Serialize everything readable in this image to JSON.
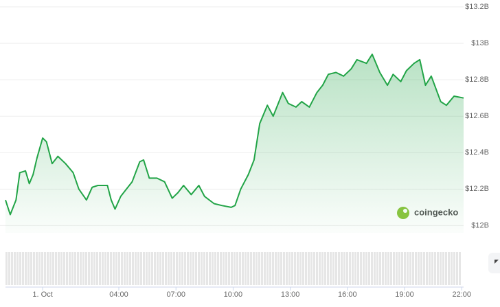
{
  "chart_data": {
    "type": "line",
    "watermark": "coingecko",
    "color": "#22a447",
    "grid": true,
    "xlim": [
      -1.95,
      22.1
    ],
    "xticks": [
      {
        "value": 0,
        "label": "1. Oct"
      },
      {
        "value": 4,
        "label": "04:00"
      },
      {
        "value": 7,
        "label": "07:00"
      },
      {
        "value": 10,
        "label": "10:00"
      },
      {
        "value": 13,
        "label": "13:00"
      },
      {
        "value": 16,
        "label": "16:00"
      },
      {
        "value": 19,
        "label": "19:00"
      },
      {
        "value": 22,
        "label": "22:00"
      }
    ],
    "ylim": [
      11.96,
      13.2
    ],
    "yticks": [
      {
        "value": 12.0,
        "label": "$12B"
      },
      {
        "value": 12.2,
        "label": "$12.2B"
      },
      {
        "value": 12.4,
        "label": "$12.4B"
      },
      {
        "value": 12.6,
        "label": "$12.6B"
      },
      {
        "value": 12.8,
        "label": "$12.8B"
      },
      {
        "value": 13.0,
        "label": "$13B"
      },
      {
        "value": 13.2,
        "label": "$13.2B"
      }
    ],
    "x": [
      -1.95,
      -1.7,
      -1.4,
      -1.2,
      -0.9,
      -0.7,
      -0.5,
      -0.3,
      0,
      0.2,
      0.5,
      0.8,
      1.2,
      1.6,
      1.9,
      2.3,
      2.6,
      2.9,
      3.4,
      3.6,
      3.8,
      4.1,
      4.4,
      4.7,
      5.1,
      5.3,
      5.6,
      6.0,
      6.4,
      6.8,
      7.1,
      7.4,
      7.8,
      8.2,
      8.5,
      9.0,
      9.4,
      9.9,
      10.1,
      10.4,
      10.8,
      11.1,
      11.4,
      11.8,
      12.1,
      12.6,
      12.9,
      13.3,
      13.6,
      14.0,
      14.4,
      14.7,
      15.0,
      15.4,
      15.8,
      16.2,
      16.5,
      17.0,
      17.3,
      17.7,
      18.1,
      18.4,
      18.8,
      19.1,
      19.5,
      19.8,
      20.1,
      20.4,
      20.9,
      21.2,
      21.6,
      22.1
    ],
    "values": [
      12.14,
      12.06,
      12.14,
      12.29,
      12.3,
      12.23,
      12.28,
      12.37,
      12.48,
      12.46,
      12.34,
      12.38,
      12.34,
      12.29,
      12.2,
      12.14,
      12.21,
      12.22,
      12.22,
      12.14,
      12.09,
      12.16,
      12.2,
      12.24,
      12.35,
      12.36,
      12.26,
      12.26,
      12.24,
      12.15,
      12.18,
      12.22,
      12.17,
      12.22,
      12.16,
      12.12,
      12.11,
      12.1,
      12.11,
      12.2,
      12.28,
      12.36,
      12.56,
      12.66,
      12.6,
      12.73,
      12.67,
      12.65,
      12.68,
      12.65,
      12.73,
      12.77,
      12.83,
      12.84,
      12.82,
      12.86,
      12.91,
      12.89,
      12.94,
      12.84,
      12.77,
      12.83,
      12.79,
      12.85,
      12.89,
      12.91,
      12.77,
      12.82,
      12.68,
      12.66,
      12.71,
      12.7
    ]
  }
}
